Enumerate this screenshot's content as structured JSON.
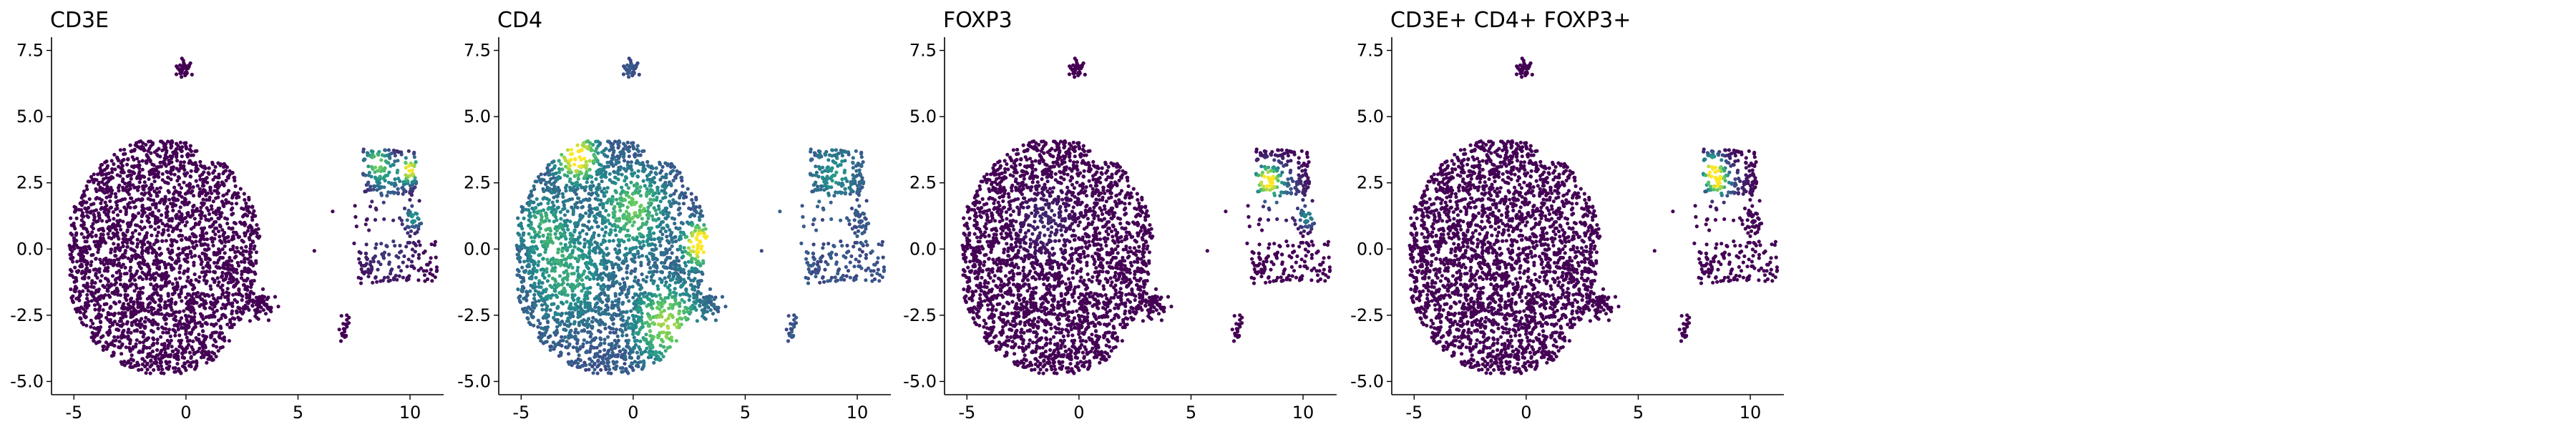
{
  "figure": {
    "background": "#ffffff"
  },
  "chart_data": [
    {
      "type": "scatter",
      "title": "CD3E",
      "xlabel": "",
      "ylabel": "",
      "xlim": [
        -6,
        11.5
      ],
      "ylim": [
        -5.5,
        8
      ],
      "xticks": [
        -5,
        0,
        5,
        10
      ],
      "xtick_labels": [
        "-5",
        "0",
        "5",
        "10"
      ],
      "yticks": [
        -5.0,
        -2.5,
        0.0,
        2.5,
        5.0,
        7.5
      ],
      "ytick_labels": [
        "-5.0",
        "-2.5",
        "0.0",
        "2.5",
        "5.0",
        "7.5"
      ],
      "colormap": [
        "#440154",
        "#3b528b",
        "#21918c",
        "#5ec962",
        "#fde725"
      ],
      "grid": false,
      "hotspots": [
        {
          "x": 8.5,
          "y": 3.3,
          "sigma": 0.45,
          "value": 0.7
        },
        {
          "x": 10.0,
          "y": 3.0,
          "sigma": 0.35,
          "value": 1.0
        },
        {
          "x": 10.2,
          "y": 1.2,
          "sigma": 0.3,
          "value": 0.5
        },
        {
          "x": 9.0,
          "y": 2.5,
          "sigma": 0.6,
          "value": 0.35
        },
        {
          "x": 9.0,
          "y": 0.0,
          "sigma": 0.9,
          "value": 0.18
        }
      ]
    },
    {
      "type": "scatter",
      "title": "CD4",
      "xlabel": "",
      "ylabel": "",
      "xlim": [
        -6,
        11.5
      ],
      "ylim": [
        -5.5,
        8
      ],
      "xticks": [
        -5,
        0,
        5,
        10
      ],
      "xtick_labels": [
        "-5",
        "0",
        "5",
        "10"
      ],
      "yticks": [
        -5.0,
        -2.5,
        0.0,
        2.5,
        5.0,
        7.5
      ],
      "ytick_labels": [
        "-5.0",
        "-2.5",
        "0.0",
        "2.5",
        "5.0",
        "7.5"
      ],
      "colormap": [
        "#440154",
        "#3b528b",
        "#21918c",
        "#5ec962",
        "#fde725"
      ],
      "grid": false,
      "base_value": 0.25,
      "hotspots": [
        {
          "x": -2.5,
          "y": 3.5,
          "sigma": 0.6,
          "value": 0.9
        },
        {
          "x": 3.0,
          "y": 0.2,
          "sigma": 0.5,
          "value": 1.0
        },
        {
          "x": 0.0,
          "y": 1.5,
          "sigma": 1.0,
          "value": 0.5
        },
        {
          "x": 1.5,
          "y": -2.8,
          "sigma": 1.0,
          "value": 0.6
        },
        {
          "x": -3.0,
          "y": -1.0,
          "sigma": 1.2,
          "value": 0.35
        },
        {
          "x": -4.0,
          "y": 1.0,
          "sigma": 0.8,
          "value": 0.3
        },
        {
          "x": 9.0,
          "y": 2.8,
          "sigma": 0.7,
          "value": 0.25
        },
        {
          "x": 7.5,
          "y": 6.8,
          "sigma": 0.4,
          "value": 0.2
        }
      ]
    },
    {
      "type": "scatter",
      "title": "FOXP3",
      "xlabel": "",
      "ylabel": "",
      "xlim": [
        -6,
        11.5
      ],
      "ylim": [
        -5.5,
        8
      ],
      "xticks": [
        -5,
        0,
        5,
        10
      ],
      "xtick_labels": [
        "-5",
        "0",
        "5",
        "10"
      ],
      "yticks": [
        -5.0,
        -2.5,
        0.0,
        2.5,
        5.0,
        7.5
      ],
      "ytick_labels": [
        "-5.0",
        "-2.5",
        "0.0",
        "2.5",
        "5.0",
        "7.5"
      ],
      "colormap": [
        "#440154",
        "#3b528b",
        "#21918c",
        "#5ec962",
        "#fde725"
      ],
      "grid": false,
      "hotspots": [
        {
          "x": 8.4,
          "y": 2.6,
          "sigma": 0.4,
          "value": 1.0
        },
        {
          "x": 10.2,
          "y": 1.2,
          "sigma": 0.3,
          "value": 0.45
        },
        {
          "x": 9.0,
          "y": 2.2,
          "sigma": 0.7,
          "value": 0.3
        },
        {
          "x": -1.5,
          "y": 1.0,
          "sigma": 0.8,
          "value": 0.12
        }
      ]
    },
    {
      "type": "scatter",
      "title": "CD3E+ CD4+ FOXP3+",
      "xlabel": "",
      "ylabel": "",
      "xlim": [
        -6,
        11.5
      ],
      "ylim": [
        -5.5,
        8
      ],
      "xticks": [
        -5,
        0,
        5,
        10
      ],
      "xtick_labels": [
        "-5",
        "0",
        "5",
        "10"
      ],
      "yticks": [
        -5.0,
        -2.5,
        0.0,
        2.5,
        5.0,
        7.5
      ],
      "ytick_labels": [
        "-5.0",
        "-2.5",
        "0.0",
        "2.5",
        "5.0",
        "7.5"
      ],
      "colormap": [
        "#440154",
        "#3b528b",
        "#21918c",
        "#5ec962",
        "#fde725"
      ],
      "grid": false,
      "hotspots": [
        {
          "x": 8.3,
          "y": 3.1,
          "sigma": 0.35,
          "value": 0.85
        },
        {
          "x": 8.5,
          "y": 2.5,
          "sigma": 0.35,
          "value": 0.8
        },
        {
          "x": 9.0,
          "y": 2.5,
          "sigma": 0.6,
          "value": 0.2
        }
      ]
    }
  ]
}
